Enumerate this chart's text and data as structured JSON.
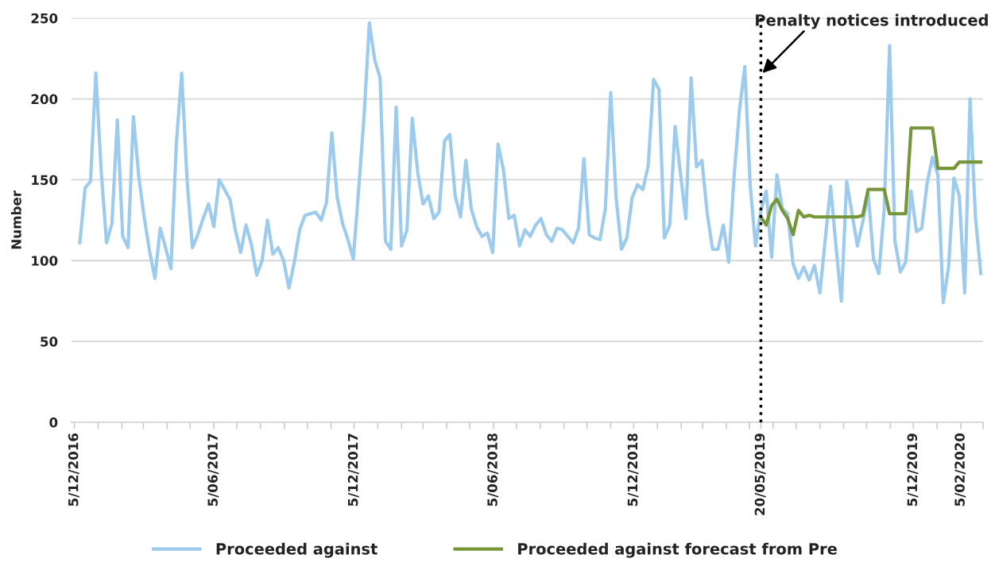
{
  "chart_data": {
    "type": "line",
    "ylabel": "Number",
    "x": [
      "2016-12-12",
      "2016-12-19",
      "2016-12-26",
      "2017-01-02",
      "2017-01-09",
      "2017-01-16",
      "2017-01-23",
      "2017-01-30",
      "2017-02-06",
      "2017-02-13",
      "2017-02-20",
      "2017-02-27",
      "2017-03-06",
      "2017-03-13",
      "2017-03-20",
      "2017-03-27",
      "2017-04-03",
      "2017-04-10",
      "2017-04-17",
      "2017-04-24",
      "2017-05-01",
      "2017-05-08",
      "2017-05-15",
      "2017-05-22",
      "2017-05-29",
      "2017-06-05",
      "2017-06-12",
      "2017-06-19",
      "2017-06-26",
      "2017-07-03",
      "2017-07-10",
      "2017-07-17",
      "2017-07-24",
      "2017-07-31",
      "2017-08-07",
      "2017-08-14",
      "2017-08-21",
      "2017-08-28",
      "2017-09-04",
      "2017-09-11",
      "2017-09-18",
      "2017-09-25",
      "2017-10-02",
      "2017-10-09",
      "2017-10-16",
      "2017-10-23",
      "2017-10-30",
      "2017-11-06",
      "2017-11-13",
      "2017-11-20",
      "2017-11-27",
      "2017-12-04",
      "2017-12-11",
      "2017-12-18",
      "2017-12-25",
      "2018-01-01",
      "2018-01-08",
      "2018-01-15",
      "2018-01-22",
      "2018-01-29",
      "2018-02-05",
      "2018-02-12",
      "2018-02-19",
      "2018-02-26",
      "2018-03-05",
      "2018-03-12",
      "2018-03-19",
      "2018-03-26",
      "2018-04-02",
      "2018-04-09",
      "2018-04-16",
      "2018-04-23",
      "2018-04-30",
      "2018-05-07",
      "2018-05-14",
      "2018-05-21",
      "2018-05-28",
      "2018-06-04",
      "2018-06-11",
      "2018-06-18",
      "2018-06-25",
      "2018-07-02",
      "2018-07-09",
      "2018-07-16",
      "2018-07-23",
      "2018-07-30",
      "2018-08-06",
      "2018-08-13",
      "2018-08-20",
      "2018-08-27",
      "2018-09-03",
      "2018-09-10",
      "2018-09-17",
      "2018-09-24",
      "2018-10-01",
      "2018-10-08",
      "2018-10-15",
      "2018-10-22",
      "2018-10-29",
      "2018-11-05",
      "2018-11-12",
      "2018-11-19",
      "2018-11-26",
      "2018-12-03",
      "2018-12-10",
      "2018-12-17",
      "2018-12-24",
      "2018-12-31",
      "2019-01-07",
      "2019-01-14",
      "2019-01-21",
      "2019-01-28",
      "2019-02-04",
      "2019-02-11",
      "2019-02-18",
      "2019-02-25",
      "2019-03-04",
      "2019-03-11",
      "2019-03-18",
      "2019-03-25",
      "2019-04-01",
      "2019-04-08",
      "2019-04-15",
      "2019-04-22",
      "2019-04-29",
      "2019-05-06",
      "2019-05-13",
      "2019-05-20",
      "2019-05-27",
      "2019-06-03",
      "2019-06-10",
      "2019-06-17",
      "2019-06-24",
      "2019-07-01",
      "2019-07-08",
      "2019-07-15",
      "2019-07-22",
      "2019-07-29",
      "2019-08-05",
      "2019-08-12",
      "2019-08-19",
      "2019-08-26",
      "2019-09-02",
      "2019-09-09",
      "2019-09-16",
      "2019-09-23",
      "2019-09-30",
      "2019-10-07",
      "2019-10-14",
      "2019-10-21",
      "2019-10-28",
      "2019-11-04",
      "2019-11-11",
      "2019-11-18",
      "2019-11-25",
      "2019-12-02",
      "2019-12-09",
      "2019-12-16",
      "2019-12-23",
      "2019-12-30",
      "2020-01-06",
      "2020-01-13",
      "2020-01-20",
      "2020-01-27",
      "2020-02-03",
      "2020-02-10",
      "2020-02-17",
      "2020-02-24",
      "2020-03-02"
    ],
    "series": [
      {
        "name": "Proceeded against",
        "color": "#9dcbee",
        "values": [
          111,
          145,
          149,
          216,
          155,
          111,
          123,
          187,
          115,
          108,
          189,
          152,
          127,
          106,
          89,
          120,
          108,
          95,
          172,
          216,
          150,
          108,
          116,
          126,
          135,
          121,
          150,
          144,
          138,
          119,
          105,
          122,
          110,
          91,
          100,
          125,
          104,
          108,
          100,
          83,
          99,
          119,
          128,
          129,
          130,
          125,
          136,
          179,
          139,
          123,
          113,
          101,
          144,
          189,
          247,
          224,
          213,
          112,
          107,
          195,
          109,
          119,
          188,
          155,
          135,
          140,
          126,
          130,
          174,
          178,
          140,
          127,
          162,
          132,
          121,
          115,
          117,
          105,
          172,
          156,
          126,
          128,
          109,
          119,
          115,
          122,
          126,
          116,
          112,
          120,
          119,
          115,
          111,
          120,
          163,
          116,
          114,
          113,
          132,
          204,
          139,
          107,
          114,
          139,
          147,
          144,
          159,
          212,
          206,
          114,
          122,
          183,
          154,
          126,
          213,
          158,
          162,
          129,
          107,
          107,
          122,
          99,
          152,
          193,
          220,
          147,
          109,
          131,
          143,
          102,
          153,
          132,
          129,
          98,
          89,
          96,
          88,
          97,
          80,
          113,
          146,
          109,
          75,
          149,
          129,
          109,
          124,
          142,
          101,
          92,
          132,
          233,
          112,
          93,
          99,
          143,
          118,
          120,
          148,
          164,
          153,
          74,
          96,
          151,
          140,
          80,
          200,
          127,
          92
        ]
      },
      {
        "name": "Proceeded against forecast from Pre",
        "color": "#76963a",
        "values": [
          null,
          null,
          null,
          null,
          null,
          null,
          null,
          null,
          null,
          null,
          null,
          null,
          null,
          null,
          null,
          null,
          null,
          null,
          null,
          null,
          null,
          null,
          null,
          null,
          null,
          null,
          null,
          null,
          null,
          null,
          null,
          null,
          null,
          null,
          null,
          null,
          null,
          null,
          null,
          null,
          null,
          null,
          null,
          null,
          null,
          null,
          null,
          null,
          null,
          null,
          null,
          null,
          null,
          null,
          null,
          null,
          null,
          null,
          null,
          null,
          null,
          null,
          null,
          null,
          null,
          null,
          null,
          null,
          null,
          null,
          null,
          null,
          null,
          null,
          null,
          null,
          null,
          null,
          null,
          null,
          null,
          null,
          null,
          null,
          null,
          null,
          null,
          null,
          null,
          null,
          null,
          null,
          null,
          null,
          null,
          null,
          null,
          null,
          null,
          null,
          null,
          null,
          null,
          null,
          null,
          null,
          null,
          null,
          null,
          null,
          null,
          null,
          null,
          null,
          null,
          null,
          null,
          null,
          null,
          null,
          null,
          null,
          null,
          null,
          null,
          null,
          null,
          127,
          122,
          134,
          138,
          131,
          126,
          116,
          131,
          127,
          128,
          127,
          127,
          127,
          127,
          127,
          127,
          127,
          127,
          127,
          128,
          144,
          144,
          144,
          144,
          129,
          129,
          129,
          129,
          182,
          182,
          182,
          182,
          182,
          157,
          157,
          157,
          157,
          161,
          161,
          161,
          161,
          161
        ]
      }
    ],
    "xlim": [
      "2016-12-01",
      "2020-03-05"
    ],
    "xticks": [
      {
        "value": "2016-12-05",
        "label": "5/12/2016"
      },
      {
        "value": "2017-01-05",
        "label": null
      },
      {
        "value": "2017-02-05",
        "label": null
      },
      {
        "value": "2017-03-05",
        "label": null
      },
      {
        "value": "2017-04-05",
        "label": null
      },
      {
        "value": "2017-05-05",
        "label": null
      },
      {
        "value": "2017-06-05",
        "label": "5/06/2017"
      },
      {
        "value": "2017-07-05",
        "label": null
      },
      {
        "value": "2017-08-05",
        "label": null
      },
      {
        "value": "2017-09-05",
        "label": null
      },
      {
        "value": "2017-10-05",
        "label": null
      },
      {
        "value": "2017-11-05",
        "label": null
      },
      {
        "value": "2017-12-05",
        "label": "5/12/2017"
      },
      {
        "value": "2018-01-05",
        "label": null
      },
      {
        "value": "2018-02-05",
        "label": null
      },
      {
        "value": "2018-03-05",
        "label": null
      },
      {
        "value": "2018-04-05",
        "label": null
      },
      {
        "value": "2018-05-05",
        "label": null
      },
      {
        "value": "2018-06-05",
        "label": "5/06/2018"
      },
      {
        "value": "2018-07-05",
        "label": null
      },
      {
        "value": "2018-08-05",
        "label": null
      },
      {
        "value": "2018-09-05",
        "label": null
      },
      {
        "value": "2018-10-05",
        "label": null
      },
      {
        "value": "2018-11-05",
        "label": null
      },
      {
        "value": "2018-12-05",
        "label": "5/12/2018"
      },
      {
        "value": "2019-01-05",
        "label": null
      },
      {
        "value": "2019-02-05",
        "label": null
      },
      {
        "value": "2019-03-05",
        "label": null
      },
      {
        "value": "2019-04-05",
        "label": null
      },
      {
        "value": "2019-05-05",
        "label": null
      },
      {
        "value": "2019-05-20",
        "label": "20/05/2019"
      },
      {
        "value": "2019-06-05",
        "label": null
      },
      {
        "value": "2019-07-05",
        "label": null
      },
      {
        "value": "2019-08-05",
        "label": null
      },
      {
        "value": "2019-09-05",
        "label": null
      },
      {
        "value": "2019-10-05",
        "label": null
      },
      {
        "value": "2019-11-05",
        "label": null
      },
      {
        "value": "2019-12-05",
        "label": "5/12/2019"
      },
      {
        "value": "2020-01-05",
        "label": null
      },
      {
        "value": "2020-02-05",
        "label": "5/02/2020"
      },
      {
        "value": "2020-03-05",
        "label": null
      }
    ],
    "ylim": [
      0,
      250
    ],
    "yticks": [
      0,
      50,
      100,
      150,
      200,
      250
    ],
    "grid": "y",
    "legend": "bottom",
    "marker": "none",
    "line_style": "solid",
    "ref_lines": [
      {
        "axis": "x",
        "value": "2019-05-20",
        "label": "Penalty notices introduced",
        "color": "#000000",
        "line_style": "dotted"
      }
    ]
  }
}
